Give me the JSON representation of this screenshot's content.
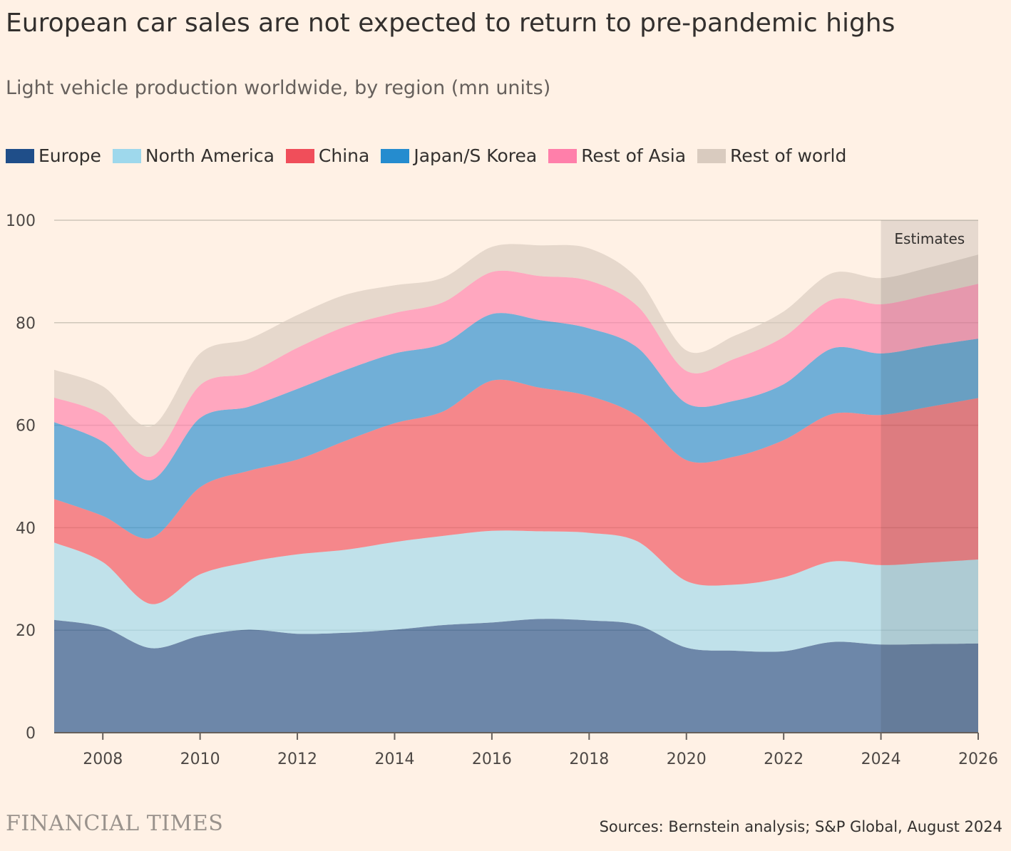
{
  "title": "European car sales are not expected to return to pre-pandemic highs",
  "subtitle": "Light vehicle production worldwide, by region (mn units)",
  "brand": "FINANCIAL TIMES",
  "source": "Sources: Bernstein analysis; S&P Global, August 2024",
  "chart_data": {
    "type": "area",
    "stacked": true,
    "title": "European car sales are not expected to return to pre-pandemic highs",
    "subtitle": "Light vehicle production worldwide, by region (mn units)",
    "x": [
      2007,
      2008,
      2009,
      2010,
      2011,
      2012,
      2013,
      2014,
      2015,
      2016,
      2017,
      2018,
      2019,
      2020,
      2021,
      2022,
      2023,
      2024,
      2025,
      2026
    ],
    "series": [
      {
        "name": "Europe",
        "color": "#1f4e89",
        "values": [
          22.0,
          20.6,
          16.5,
          18.9,
          20.1,
          19.3,
          19.5,
          20.1,
          21.0,
          21.5,
          22.2,
          21.9,
          21.0,
          16.6,
          16.0,
          15.9,
          17.7,
          17.2,
          17.3,
          17.4
        ]
      },
      {
        "name": "North America",
        "color": "#9ed8ec",
        "values": [
          15.1,
          12.7,
          8.6,
          12.0,
          13.2,
          15.5,
          16.2,
          17.1,
          17.4,
          17.9,
          17.1,
          17.1,
          16.3,
          13.0,
          12.9,
          14.4,
          15.7,
          15.5,
          15.9,
          16.4
        ]
      },
      {
        "name": "China",
        "color": "#f04e5a",
        "values": [
          8.5,
          9.0,
          12.9,
          17.0,
          17.8,
          18.5,
          21.3,
          23.2,
          24.3,
          29.3,
          28.0,
          26.7,
          24.5,
          23.6,
          25.0,
          26.8,
          28.8,
          29.3,
          30.4,
          31.5
        ]
      },
      {
        "name": "Japan/S Korea",
        "color": "#258ccf",
        "values": [
          15.0,
          14.5,
          11.3,
          13.5,
          12.5,
          13.8,
          13.8,
          13.6,
          13.2,
          13.0,
          13.2,
          13.2,
          13.3,
          11.1,
          10.9,
          10.9,
          12.8,
          12.0,
          11.9,
          11.6
        ]
      },
      {
        "name": "Rest of Asia",
        "color": "#ff7faa",
        "values": [
          4.8,
          5.3,
          4.6,
          6.4,
          6.6,
          8.0,
          8.5,
          7.9,
          8.1,
          8.2,
          8.6,
          9.3,
          8.1,
          6.3,
          8.2,
          9.2,
          9.5,
          9.6,
          10.0,
          10.7
        ]
      },
      {
        "name": "Rest of world",
        "color": "#d9cbbf",
        "values": [
          5.4,
          5.5,
          5.9,
          6.2,
          6.6,
          6.4,
          6.2,
          5.4,
          4.8,
          4.9,
          6.0,
          6.3,
          5.4,
          4.0,
          4.5,
          5.0,
          5.2,
          5.1,
          5.3,
          5.7
        ]
      }
    ],
    "ylim": [
      0,
      100
    ],
    "xlim": [
      2007,
      2026
    ],
    "yticks": [
      0,
      20,
      40,
      60,
      80,
      100
    ],
    "xticks": [
      2008,
      2010,
      2012,
      2014,
      2016,
      2018,
      2020,
      2022,
      2024,
      2026
    ],
    "grid": true,
    "legend_position": "top",
    "annotation": {
      "label": "Estimates",
      "x_start": 2024,
      "x_end": 2026
    }
  }
}
